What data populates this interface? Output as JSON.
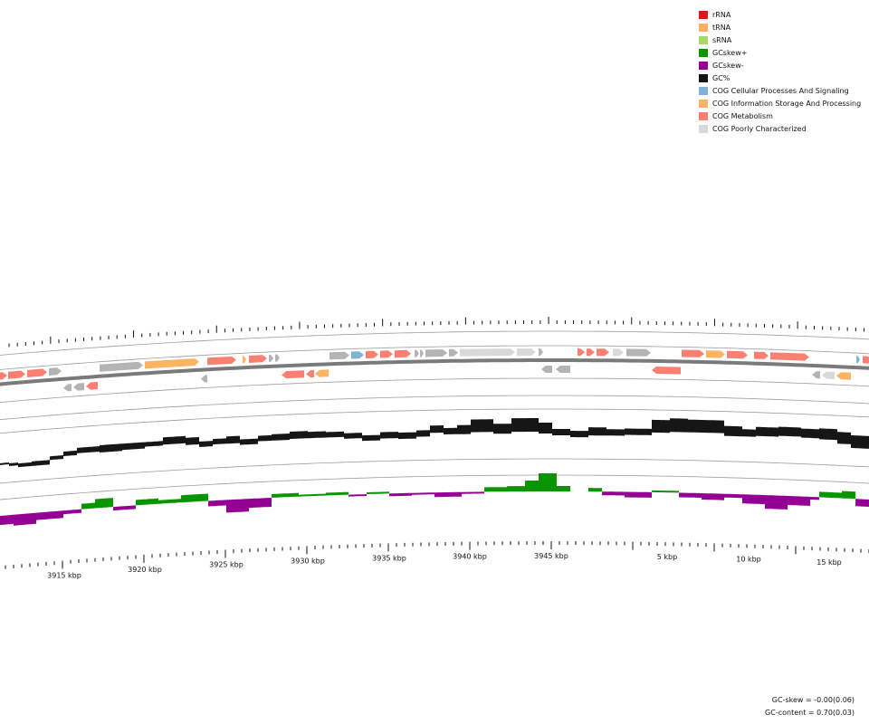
{
  "legend": {
    "items": [
      {
        "label": "rRNA",
        "color": "#d7191c"
      },
      {
        "label": "tRNA",
        "color": "#fdae61"
      },
      {
        "label": "sRNA",
        "color": "#a6d96a"
      },
      {
        "label": "GCskew+",
        "color": "#0a9400"
      },
      {
        "label": "GCskew-",
        "color": "#930093"
      },
      {
        "label": "GC%",
        "color": "#161616"
      },
      {
        "label": "COG Cellular Processes And Signaling",
        "color": "#7fb2d5"
      },
      {
        "label": "COG Information Storage And Processing",
        "color": "#fdb462"
      },
      {
        "label": "COG Metabolism",
        "color": "#fb8072"
      },
      {
        "label": "COG Poorly Characterized",
        "color": "#d9d9d9"
      }
    ]
  },
  "ruler": {
    "labels": [
      "3915 kbp",
      "3920 kbp",
      "3925 kbp",
      "3930 kbp",
      "3935 kbp",
      "3940 kbp",
      "3945 kbp",
      "5 kbp",
      "10 kbp",
      "15 kbp"
    ]
  },
  "stats": {
    "gc_skew": "GC-skew = -0.00(0.06)",
    "gc_content": "GC-content = 0.70(0.03)"
  },
  "colors": {
    "unknown_feature": "#b4b4b4",
    "backbone": "#7a7a7a",
    "guide_ring": "#9c9c9c",
    "tick": "#111111"
  }
}
